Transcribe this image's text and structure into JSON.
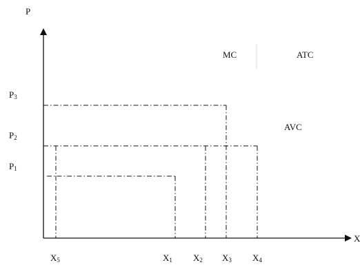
{
  "axes": {
    "y_label": "P",
    "x_label": "X"
  },
  "curves": {
    "mc": "MC",
    "atc": "ATC",
    "avc": "AVC"
  },
  "price_levels": [
    {
      "base": "P",
      "sub": "3"
    },
    {
      "base": "P",
      "sub": "2"
    },
    {
      "base": "P",
      "sub": "1"
    }
  ],
  "quantity_levels": [
    {
      "base": "X",
      "sub": "5"
    },
    {
      "base": "X",
      "sub": "1"
    },
    {
      "base": "X",
      "sub": "2"
    },
    {
      "base": "X",
      "sub": "3"
    },
    {
      "base": "X",
      "sub": "4"
    }
  ],
  "colors": {
    "ink": "#111111",
    "background": "#ffffff"
  }
}
